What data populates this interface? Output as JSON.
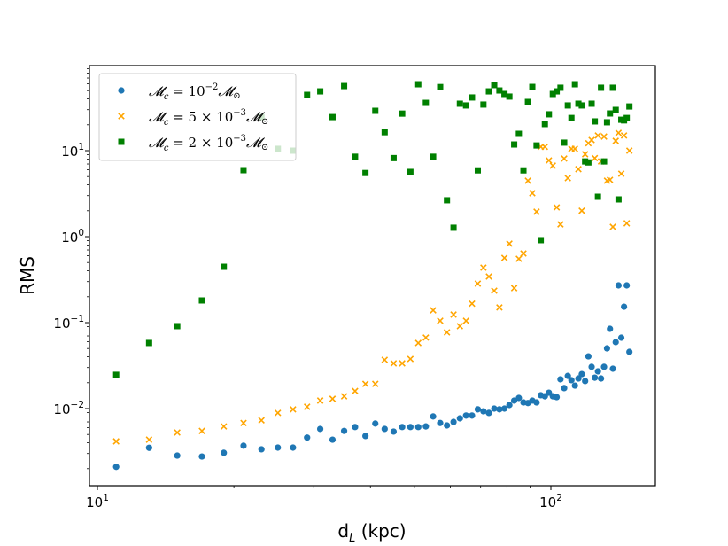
{
  "chart_data": {
    "type": "scatter",
    "title": "",
    "xlabel": "d_L (kpc)",
    "xlabel_main": "d",
    "xlabel_sub": "L",
    "xlabel_rest": " (kpc)",
    "ylabel": "RMS",
    "xscale": "log",
    "yscale": "log",
    "xlim": [
      9.8,
      176
    ],
    "ylim": [
      0.00127,
      97
    ],
    "grid": false,
    "legend_position": "top-left",
    "x_ticks": [
      {
        "value": 10,
        "base": "10",
        "exp": "1"
      },
      {
        "value": 100,
        "base": "10",
        "exp": "2"
      }
    ],
    "y_ticks": [
      {
        "value": 10,
        "base": "10",
        "exp": "1"
      },
      {
        "value": 1,
        "base": "10",
        "exp": "0"
      },
      {
        "value": 0.1,
        "base": "10",
        "exp": "−1"
      },
      {
        "value": 0.01,
        "base": "10",
        "exp": "−2"
      }
    ],
    "x": [
      11,
      13,
      15,
      17,
      19,
      21,
      23,
      25,
      27,
      29,
      31,
      33,
      35,
      37,
      39,
      41,
      43,
      45,
      47,
      49,
      51,
      53,
      55,
      57,
      59,
      61,
      63,
      65,
      67,
      69,
      71,
      73,
      75,
      77,
      79,
      81,
      83,
      85,
      87,
      89,
      91,
      93,
      95,
      97,
      99,
      101,
      103,
      105,
      107,
      109,
      111,
      113,
      115,
      117,
      119,
      121,
      123,
      125,
      127,
      129,
      131,
      133,
      135,
      137,
      139,
      141,
      143,
      145,
      147,
      149
    ],
    "series": [
      {
        "name": "Mc = 10^-2 M☉",
        "legend_parts": {
          "pre": "𝓜",
          "sub": "c",
          "mid": " = 10",
          "sup": "−2",
          "post": "𝓜",
          "post_sub": "⊙"
        },
        "marker": "circle",
        "color": "#1f77b4",
        "values": [
          0.0021,
          0.0035,
          0.00284,
          0.00277,
          0.00306,
          0.0037,
          0.00336,
          0.00352,
          0.00352,
          0.0046,
          0.0058,
          0.00435,
          0.0055,
          0.0061,
          0.0048,
          0.0067,
          0.0058,
          0.0054,
          0.0061,
          0.0061,
          0.0061,
          0.0062,
          0.0081,
          0.0068,
          0.00637,
          0.007,
          0.0077,
          0.0083,
          0.0083,
          0.0098,
          0.0093,
          0.0089,
          0.01,
          0.0098,
          0.01,
          0.011,
          0.0124,
          0.0133,
          0.0118,
          0.0116,
          0.0124,
          0.0118,
          0.0143,
          0.0139,
          0.0153,
          0.0139,
          0.0136,
          0.0219,
          0.0173,
          0.024,
          0.0214,
          0.0185,
          0.0224,
          0.0252,
          0.0209,
          0.0405,
          0.0306,
          0.0229,
          0.0271,
          0.0224,
          0.0306,
          0.0502,
          0.0847,
          0.0291,
          0.0593,
          0.271,
          0.0668,
          0.153,
          0.271,
          0.0457
        ]
      },
      {
        "name": "Mc = 5×10^-3 M☉",
        "legend_parts": {
          "pre": "𝓜",
          "sub": "c",
          "mid": " = 5 × 10",
          "sup": "−3",
          "post": "𝓜",
          "post_sub": "⊙"
        },
        "marker": "x",
        "color": "#ffa500",
        "values": [
          0.00416,
          0.00435,
          0.00527,
          0.0055,
          0.0062,
          0.0068,
          0.0073,
          0.0089,
          0.0098,
          0.0105,
          0.0124,
          0.013,
          0.0139,
          0.016,
          0.0194,
          0.0194,
          0.0369,
          0.0336,
          0.0336,
          0.0378,
          0.058,
          0.067,
          0.139,
          0.105,
          0.077,
          0.124,
          0.091,
          0.105,
          0.166,
          0.284,
          0.436,
          0.344,
          0.235,
          0.15,
          0.566,
          0.83,
          0.252,
          0.552,
          0.637,
          4.47,
          3.2,
          1.95,
          11.1,
          11.1,
          7.7,
          6.7,
          2.19,
          1.39,
          8.1,
          4.79,
          10.5,
          10.5,
          6.1,
          2.0,
          9.1,
          12.2,
          13.3,
          8.2,
          15.0,
          7.5,
          14.6,
          4.47,
          4.57,
          1.3,
          13.0,
          16.1,
          5.4,
          15.0,
          1.43,
          10.0
        ]
      },
      {
        "name": "Mc = 2×10^-3 M☉",
        "legend_parts": {
          "pre": "𝓜",
          "sub": "c",
          "mid": " = 2 × 10",
          "sup": "−3",
          "post": "𝓜",
          "post_sub": "⊙"
        },
        "marker": "square",
        "color": "#008000",
        "values": [
          0.0247,
          0.058,
          0.091,
          0.181,
          0.446,
          5.93,
          24.6,
          10.5,
          10.0,
          44.6,
          49.0,
          24.6,
          56.5,
          8.5,
          5.5,
          29.1,
          16.4,
          8.2,
          27.0,
          5.66,
          59.3,
          36.0,
          8.5,
          55.0,
          2.65,
          1.27,
          35.2,
          33.6,
          41.6,
          5.9,
          34.4,
          49.0,
          58.0,
          50.2,
          45.7,
          42.6,
          11.8,
          15.7,
          5.9,
          36.9,
          55.2,
          11.5,
          0.91,
          20.4,
          26.5,
          45.7,
          49.0,
          54.0,
          12.4,
          33.6,
          24.0,
          59.3,
          35.2,
          33.6,
          7.5,
          7.3,
          35.2,
          21.9,
          2.91,
          54.0,
          7.5,
          21.4,
          27.1,
          54.0,
          29.8,
          2.71,
          22.9,
          22.5,
          24.0,
          32.7
        ]
      }
    ]
  }
}
